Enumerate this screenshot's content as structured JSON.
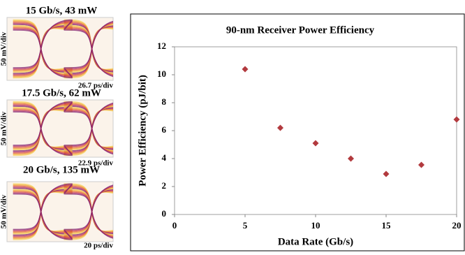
{
  "chart_data": {
    "type": "scatter",
    "title": "90-nm Receiver Power Efficiency",
    "x_label": "Data Rate (Gb/s)",
    "y_label": "Power Efficiency (pJ/bit)",
    "x": [
      5,
      7.5,
      10,
      12.5,
      15,
      17.5,
      20
    ],
    "values": [
      10.4,
      6.2,
      5.1,
      4.0,
      2.9,
      3.55,
      6.8
    ],
    "color": "#b23a3e",
    "xlim": [
      0,
      20
    ],
    "xticks": [
      0,
      5,
      10,
      15,
      20
    ],
    "ylim": [
      0,
      12
    ],
    "yticks": [
      0,
      2,
      4,
      6,
      8,
      10,
      12
    ],
    "grid": false
  },
  "eye_diagrams": [
    {
      "title": "15 Gb/s, 43 mW",
      "y_label": "50 mV/div",
      "x_label": "26.7 ps/div"
    },
    {
      "title": "17.5 Gb/s, 62 mW",
      "y_label": "50 mV/div",
      "x_label": "22.9 ps/div"
    },
    {
      "title": "20 Gb/s, 135 mW",
      "y_label": "50 mV/div",
      "x_label": "20 ps/div"
    }
  ]
}
